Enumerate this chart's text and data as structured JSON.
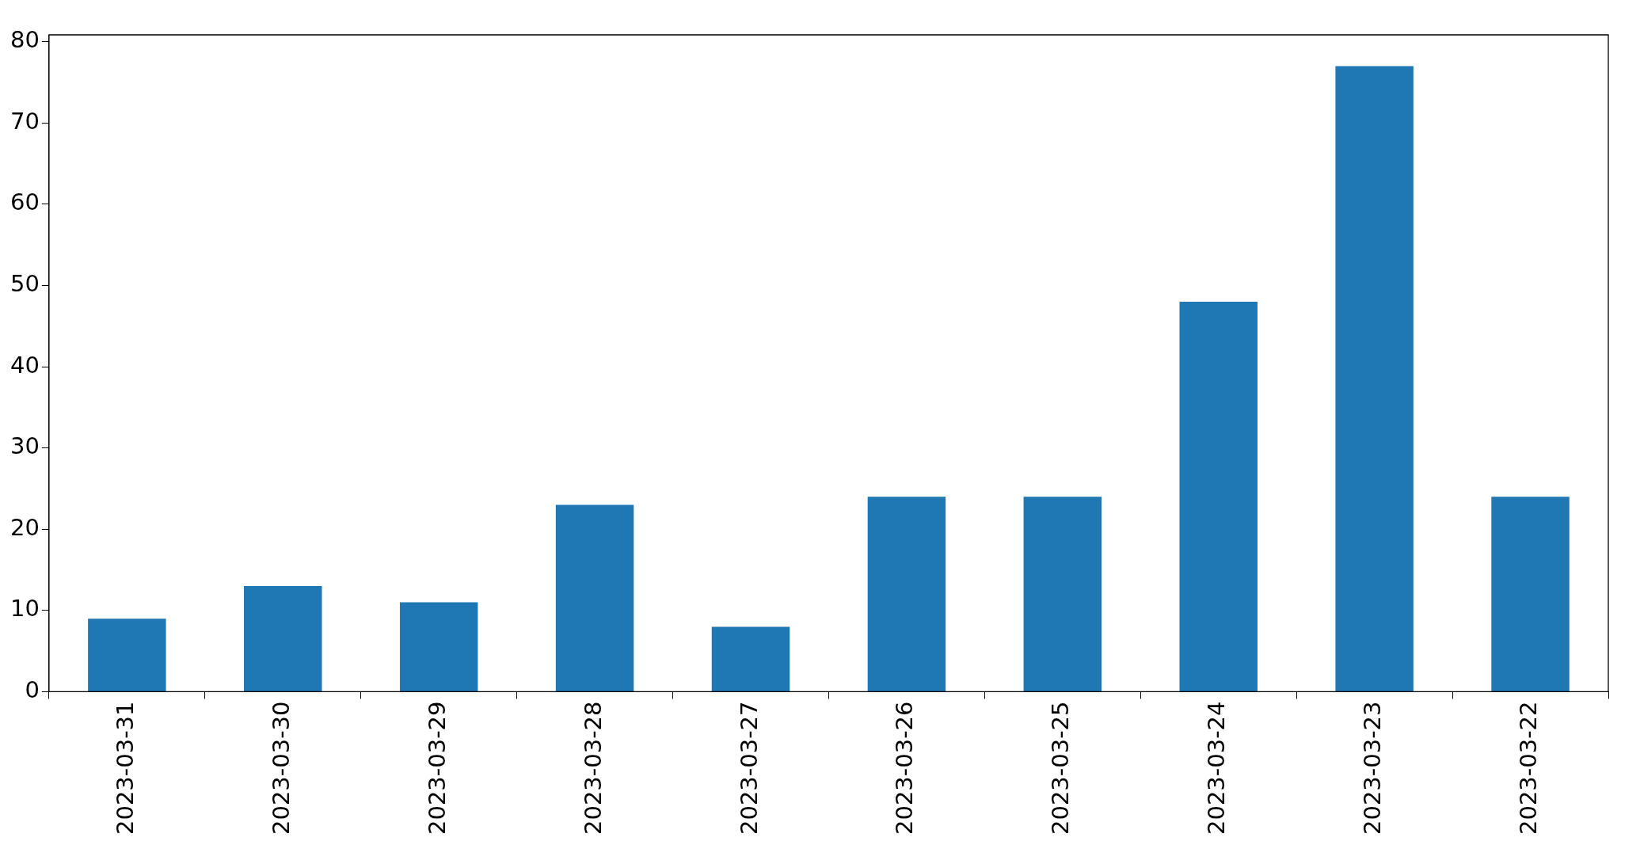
{
  "chart_data": {
    "type": "bar",
    "categories": [
      "2023-03-31",
      "2023-03-30",
      "2023-03-29",
      "2023-03-28",
      "2023-03-27",
      "2023-03-26",
      "2023-03-25",
      "2023-03-24",
      "2023-03-23",
      "2023-03-22"
    ],
    "values": [
      9,
      13,
      11,
      23,
      8,
      24,
      24,
      48,
      77,
      24
    ],
    "color": "#1f77b4",
    "ylim": [
      0,
      80.85
    ],
    "yticks": [
      0,
      10,
      20,
      30,
      40,
      50,
      60,
      70,
      80
    ],
    "grid": false,
    "legend": false
  }
}
